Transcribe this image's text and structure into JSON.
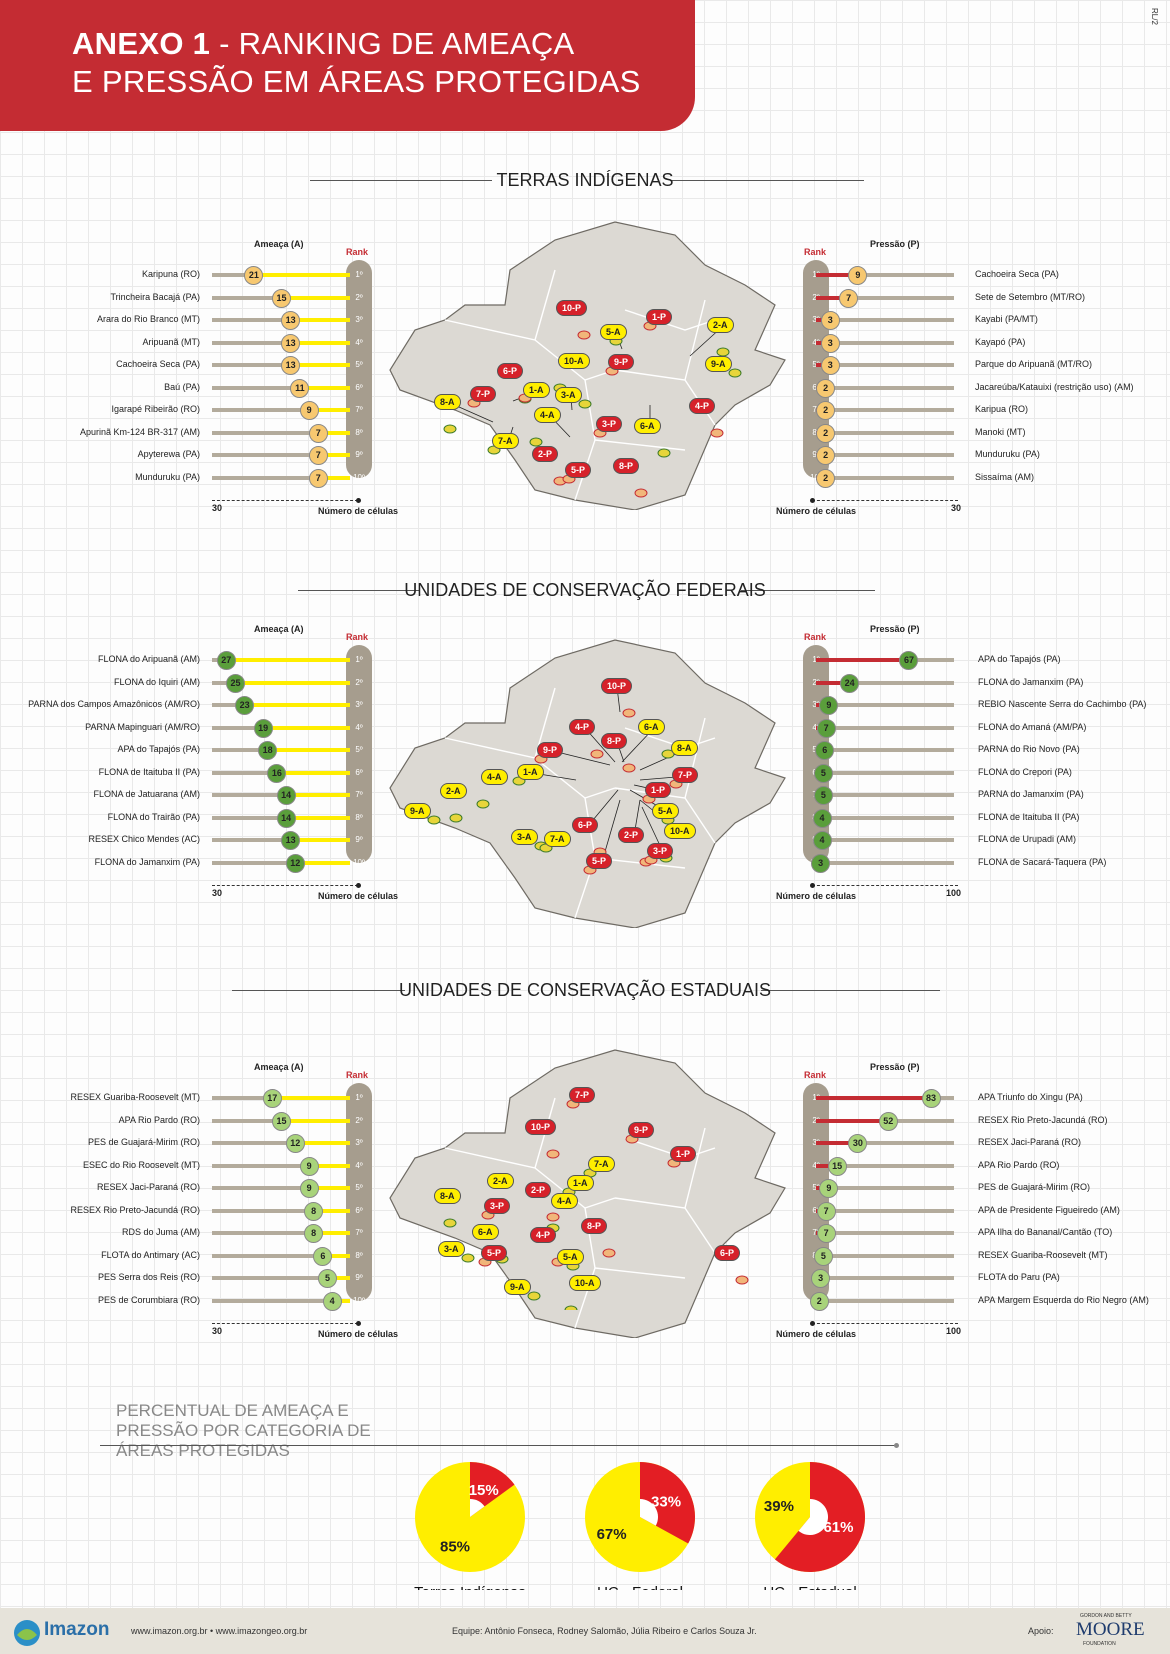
{
  "header": {
    "title_bold": "ANEXO 1",
    "title_line1_rest": " - RANKING DE AMEAÇA",
    "title_line2": "E PRESSÃO EM ÁREAS PROTEGIDAS",
    "code": "RL/2"
  },
  "colors": {
    "red": "#c42c33",
    "yellow": "#ffee00",
    "threat_dot": "#f7c870",
    "green": "#5a9e3b",
    "light_green": "#a8d37a",
    "rank_col": "#a69d8e"
  },
  "common": {
    "ameaca_label": "Ameaça (A)",
    "pressao_label": "Pressão (P)",
    "rank_label": "Rank",
    "axis_label": "Número de células",
    "ranks": [
      "1º",
      "2º",
      "3º",
      "4º",
      "5º",
      "6º",
      "7º",
      "8º",
      "9º",
      "10º"
    ]
  },
  "chart_data": [
    {
      "type": "bar",
      "title": "TERRAS INDÍGENAS",
      "threat": {
        "xlim": [
          0,
          30
        ],
        "axis_max_label": "30",
        "names": [
          "Karipuna (RO)",
          "Trincheira Bacajá (PA)",
          "Arara do Rio Branco (MT)",
          "Aripuanã (MT)",
          "Cachoeira Seca (PA)",
          "Baú (PA)",
          "Igarapé Ribeirão (RO)",
          "Apurinã Km-124 BR-317 (AM)",
          "Apyterewa (PA)",
          "Munduruku (PA)"
        ],
        "values": [
          21,
          15,
          13,
          13,
          13,
          11,
          9,
          7,
          7,
          7
        ]
      },
      "pressure": {
        "xlim": [
          0,
          30
        ],
        "axis_max_label": "30",
        "names": [
          "Cachoeira Seca (PA)",
          "Sete de Setembro (MT/RO)",
          "Kayabi (PA/MT)",
          "Kayapó (PA)",
          "Parque do Aripuanã (MT/RO)",
          "Jacareúba/Katauixi (restrição uso) (AM)",
          "Karipua (RO)",
          "Manoki (MT)",
          "Munduruku (PA)",
          "Sissaíma (AM)"
        ],
        "values": [
          9,
          7,
          3,
          3,
          3,
          2,
          2,
          2,
          2,
          2
        ]
      },
      "map_labels": [
        "1-A",
        "2-A",
        "3-A",
        "4-A",
        "5-A",
        "6-A",
        "7-A",
        "8-A",
        "9-A",
        "10-A",
        "1-P",
        "2-P",
        "3-P",
        "4-P",
        "5-P",
        "6-P",
        "7-P",
        "8-P",
        "9-P",
        "10-P"
      ]
    },
    {
      "type": "bar",
      "title": "UNIDADES DE CONSERVAÇÃO FEDERAIS",
      "threat": {
        "xlim": [
          0,
          30
        ],
        "axis_max_label": "30",
        "names": [
          "FLONA do Aripuanã (AM)",
          "FLONA do Iquiri (AM)",
          "PARNA dos Campos Amazônicos (AM/RO)",
          "PARNA Mapinguari (AM/RO)",
          "APA do Tapajós (PA)",
          "FLONA de Itaituba II (PA)",
          "FLONA de Jatuarana (AM)",
          "FLONA do Trairão (PA)",
          "RESEX Chico Mendes (AC)",
          "FLONA do Jamanxim (PA)"
        ],
        "values": [
          27,
          25,
          23,
          19,
          18,
          16,
          14,
          14,
          13,
          12
        ]
      },
      "pressure": {
        "xlim": [
          0,
          100
        ],
        "axis_max_label": "100",
        "names": [
          "APA do Tapajós (PA)",
          "FLONA do Jamanxim (PA)",
          "REBIO Nascente Serra do Cachimbo (PA)",
          "FLONA do Amaná (AM/PA)",
          "PARNA do Rio Novo (PA)",
          "FLONA do Crepori (PA)",
          "PARNA do Jamanxim (PA)",
          "FLONA de Itaituba II (PA)",
          "FLONA de Urupadi (AM)",
          "FLONA de Sacará-Taquera (PA)"
        ],
        "values": [
          67,
          24,
          9,
          7,
          6,
          5,
          5,
          4,
          4,
          3
        ]
      },
      "map_labels": [
        "1-A",
        "2-A",
        "3-A",
        "4-A",
        "5-A",
        "6-A",
        "7-A",
        "8-A",
        "9-A",
        "10-A",
        "1-P",
        "2-P",
        "3-P",
        "4-P",
        "5-P",
        "6-P",
        "7-P",
        "8-P",
        "9-P",
        "10-P"
      ]
    },
    {
      "type": "bar",
      "title": "UNIDADES DE CONSERVAÇÃO ESTADUAIS",
      "threat": {
        "xlim": [
          0,
          30
        ],
        "axis_max_label": "30",
        "names": [
          "RESEX Guariba-Roosevelt (MT)",
          "APA Rio Pardo (RO)",
          "PES de Guajará-Mirim (RO)",
          "ESEC do Rio Roosevelt (MT)",
          "RESEX Jaci-Paraná (RO)",
          "RESEX Rio Preto-Jacundá (RO)",
          "RDS do Juma (AM)",
          "FLOTA do Antimary (AC)",
          "PES Serra dos Reis (RO)",
          "PES de Corumbiara (RO)"
        ],
        "values": [
          17,
          15,
          12,
          9,
          9,
          8,
          8,
          6,
          5,
          4
        ]
      },
      "pressure": {
        "xlim": [
          0,
          100
        ],
        "axis_max_label": "100",
        "names": [
          "APA Triunfo do Xingu (PA)",
          "RESEX Rio Preto-Jacundá (RO)",
          "RESEX Jaci-Paraná (RO)",
          "APA Rio Pardo (RO)",
          "PES de Guajará-Mirim (RO)",
          "APA de Presidente Figueiredo (AM)",
          "APA Ilha do Bananal/Cantão (TO)",
          "RESEX Guariba-Roosevelt (MT)",
          "FLOTA do Paru (PA)",
          "APA Margem Esquerda do Rio Negro (AM)"
        ],
        "values": [
          83,
          52,
          30,
          15,
          9,
          7,
          7,
          5,
          3,
          2
        ]
      },
      "map_labels": [
        "1-A",
        "2-A",
        "3-A",
        "4-A",
        "5-A",
        "6-A",
        "7-A",
        "8-A",
        "9-A",
        "10-A",
        "1-P",
        "2-P",
        "3-P",
        "4-P",
        "5-P",
        "6-P",
        "7-P",
        "8-P",
        "9-P",
        "10-P"
      ]
    },
    {
      "type": "pie",
      "title": "PERCENTUAL DE AMEAÇA E PRESSÃO POR CATEGORIA DE ÁREAS PROTEGIDAS",
      "pies": [
        {
          "name": "Terras Indígenas",
          "ameaca": 85,
          "pressao": 15,
          "ameaca_label": "85%",
          "pressao_label": "15%"
        },
        {
          "name": "UC - Federal",
          "ameaca": 67,
          "pressao": 33,
          "ameaca_label": "67%",
          "pressao_label": "33%"
        },
        {
          "name": "UC - Estadual",
          "ameaca": 39,
          "pressao": 61,
          "ameaca_label": "39%",
          "pressao_label": "61%"
        }
      ]
    }
  ],
  "footer": {
    "logo": "Imazon",
    "sites": "www.imazon.org.br • www.imazongeo.org.br",
    "team": "Equipe: Antônio Fonseca, Rodney Salomão, Júlia Ribeiro e Carlos Souza Jr.",
    "apoio": "Apoio:",
    "sponsor_small": "GORDON AND BETTY",
    "sponsor": "MOORE",
    "sponsor_sub": "FOUNDATION"
  }
}
